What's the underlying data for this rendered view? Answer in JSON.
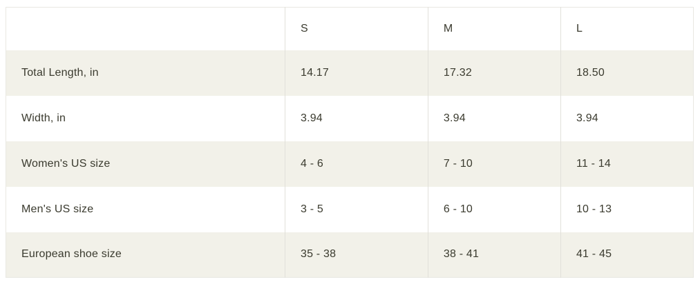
{
  "chart_data": {
    "type": "table",
    "columns": [
      "",
      "S",
      "M",
      "L"
    ],
    "rows": [
      [
        "Total Length, in",
        "14.17",
        "17.32",
        "18.50"
      ],
      [
        "Width, in",
        "3.94",
        "3.94",
        "3.94"
      ],
      [
        "Women's US size",
        "4 - 6",
        "7 - 10",
        "11 - 14"
      ],
      [
        "Men's US size",
        "3 - 5",
        "6 - 10",
        "10 - 13"
      ],
      [
        "European shoe size",
        "35 - 38",
        "38 - 41",
        "41 - 45"
      ]
    ],
    "layout": {
      "header_background": "#ffffff",
      "stripe_background": "#f2f1e9",
      "row_background": "#ffffff",
      "divider_color": "#e1e0da",
      "outer_border_color": "#e9e8e2",
      "text_color": "#3a3a2e",
      "striped_rows": "odd data rows shaded, grid lines vertical only"
    }
  }
}
